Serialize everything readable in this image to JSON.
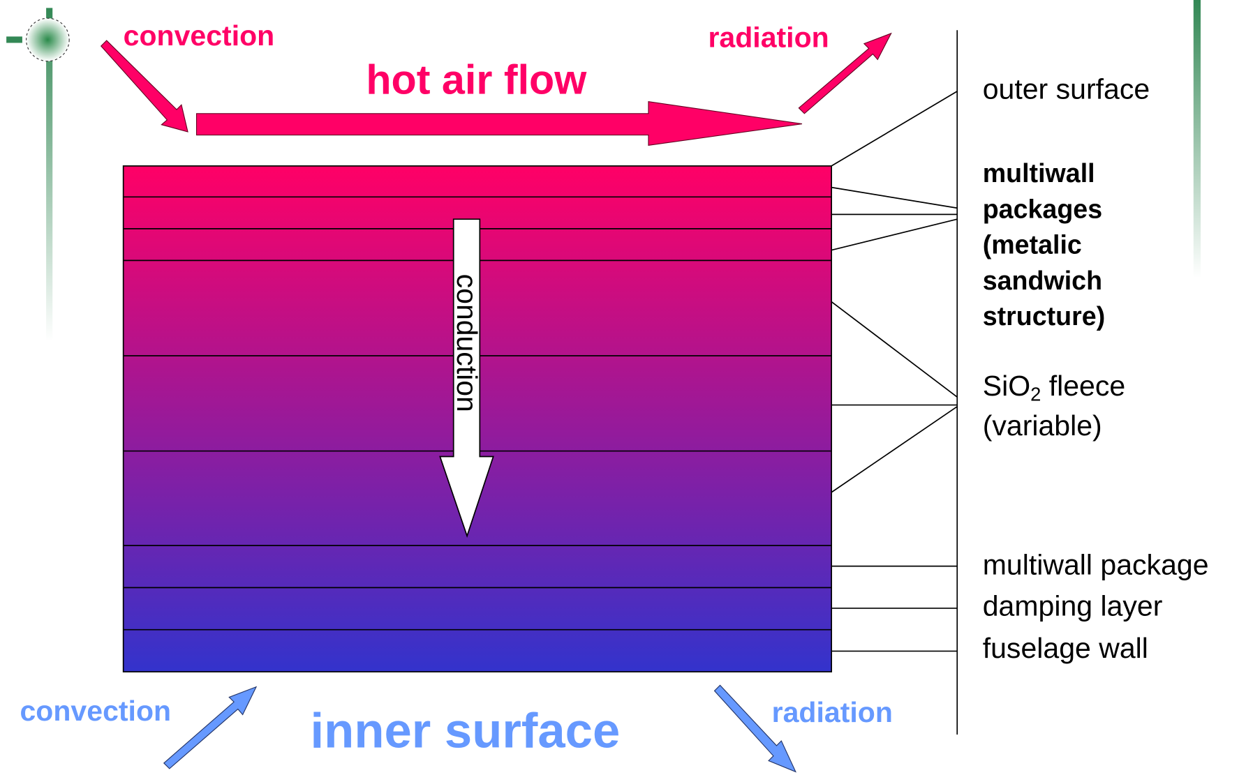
{
  "top": {
    "convection": "convection",
    "flow": "hot air flow",
    "radiation": "radiation"
  },
  "conduction": "conduction",
  "labels": {
    "outer": "outer surface",
    "multiwall_packages": [
      "multiwall",
      "packages",
      "(metalic",
      "sandwich",
      "structure)"
    ],
    "fleece": {
      "text": "SiO",
      "sub": "2",
      "rest": " fleece",
      "line2": "(variable)"
    },
    "multiwall_package": "multiwall package",
    "damping": "damping layer",
    "fuselage": "fuselage wall"
  },
  "bottom": {
    "convection": "convection",
    "surface": "inner surface",
    "radiation": "radiation"
  }
}
